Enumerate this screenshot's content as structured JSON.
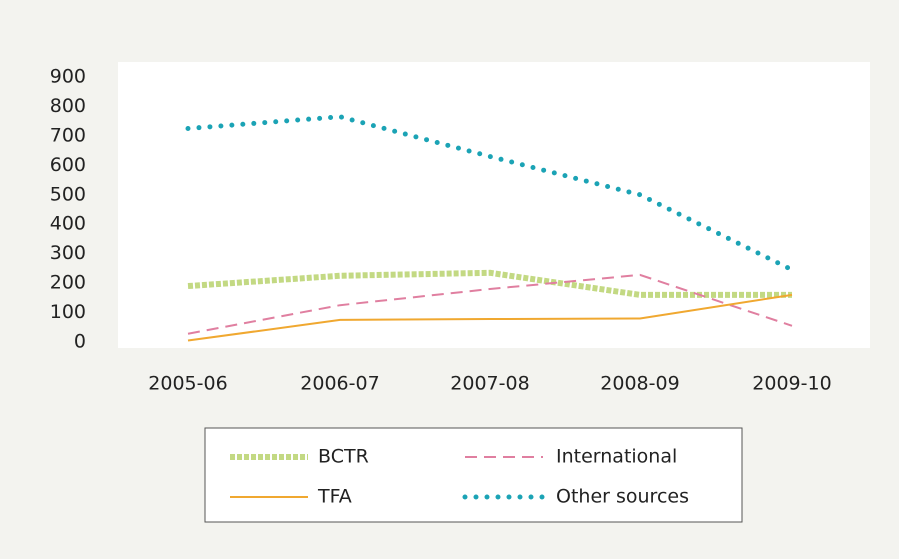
{
  "chart_data": {
    "type": "line",
    "categories": [
      "2005-06",
      "2006-07",
      "2007-08",
      "2008-09",
      "2009-10"
    ],
    "series": [
      {
        "name": "BCTR",
        "color": "#a9c94e",
        "style": "diamond",
        "values": [
          190,
          225,
          235,
          160,
          160
        ]
      },
      {
        "name": "International",
        "color": "#e07fa0",
        "style": "dashed",
        "values": [
          28,
          125,
          180,
          228,
          55
        ]
      },
      {
        "name": "TFA",
        "color": "#f0a830",
        "style": "solid",
        "values": [
          5,
          75,
          78,
          80,
          160
        ]
      },
      {
        "name": "Other sources",
        "color": "#1ba3b5",
        "style": "dotted",
        "values": [
          725,
          765,
          630,
          500,
          245
        ]
      }
    ],
    "ylim": [
      0,
      900
    ],
    "yticks": [
      0,
      100,
      200,
      300,
      400,
      500,
      600,
      700,
      800,
      900
    ],
    "grid": false,
    "legend": "bottom"
  }
}
